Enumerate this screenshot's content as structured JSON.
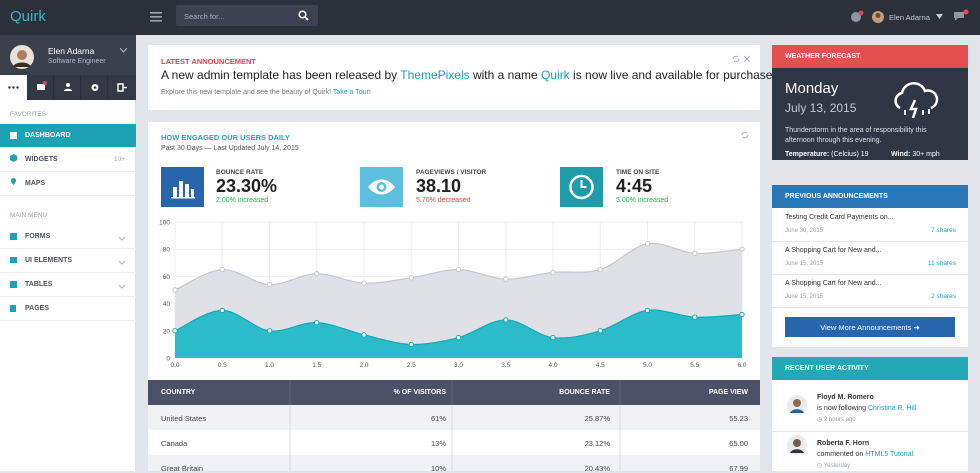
{
  "topbar": {
    "logo": "Quirk",
    "search_placeholder": "Search for...",
    "user": "Elen Adarna"
  },
  "profile": {
    "name": "Elen Adarna",
    "role": "Software Engineer"
  },
  "sidebar": {
    "favorites_label": "FAVORITES",
    "favorites": [
      {
        "label": "DASHBOARD"
      },
      {
        "label": "WIDGETS",
        "badge": "10+"
      },
      {
        "label": "MAPS"
      }
    ],
    "main_menu_label": "MAIN MENU",
    "main_menu": [
      "FORMS",
      "UI ELEMENTS",
      "TABLES",
      "PAGES"
    ]
  },
  "announcement": {
    "title": "LATEST ANNOUNCEMENT",
    "text_1": "A new admin template has been released by ",
    "link_1": "ThemePixels",
    "text_2": " with a name ",
    "link_2": "Quirk",
    "text_3": " is now live and available for purchase!",
    "sub": "Explore this new template and see the beauty of Quirk! ",
    "sub_link": "Take a Tour!"
  },
  "engagement": {
    "title": "HOW ENGAGED OUR USERS DAILY",
    "subtitle": "Past 30 Days — Last Updated July 14, 2015",
    "stats": [
      {
        "label": "BOUNCE RATE",
        "value": "23.30%",
        "change": "2.00% increased"
      },
      {
        "label": "PAGEVIEWS / VISITOR",
        "value": "38.10",
        "change": "5.70% decreased"
      },
      {
        "label": "TIME ON SITE",
        "value": "4:45",
        "change": "5.00% increased"
      }
    ]
  },
  "chart_data": {
    "type": "area",
    "x": [
      0,
      0.5,
      1,
      1.5,
      2,
      2.5,
      3,
      3.5,
      4,
      4.5,
      5,
      5.5,
      6
    ],
    "series": [
      {
        "color": "#c3c7cf",
        "fill": "#dfe1e7",
        "values": [
          50,
          65,
          54,
          62,
          55,
          59,
          65,
          58,
          63,
          65,
          84,
          77,
          80
        ]
      },
      {
        "color": "#1aa7b5",
        "fill": "#2bbcca",
        "values": [
          20,
          35,
          20,
          26,
          17,
          10,
          15,
          28,
          15,
          20,
          35,
          30,
          32
        ]
      }
    ],
    "xlim": [
      0,
      6
    ],
    "xticks": [
      {
        "value": 0,
        "label": "0.0"
      },
      0.5,
      {
        "value": 1,
        "label": "1.0"
      },
      1.5,
      {
        "value": 2,
        "label": "2.0"
      },
      2.5,
      {
        "value": 3,
        "label": "3.0"
      },
      3.5,
      {
        "value": 4,
        "label": "4.0"
      },
      4.5,
      {
        "value": 5,
        "label": "5.0"
      },
      5.5,
      {
        "value": 6,
        "label": "6.0"
      }
    ],
    "ylim": [
      0,
      100
    ],
    "yticks": [
      0,
      20,
      40,
      60,
      80,
      100
    ],
    "grid": true
  },
  "table": {
    "header": [
      "COUNTRY",
      "% OF VISITORS",
      "BOUNCE RATE",
      "PAGE VIEW"
    ],
    "rows": [
      [
        "United States",
        "61%",
        "25.87%",
        "55.23"
      ],
      [
        "Canada",
        "13%",
        "23.12%",
        "65.00"
      ],
      [
        "Great Britain",
        "10%",
        "20.43%",
        "67.99"
      ]
    ]
  },
  "weather": {
    "title": "WEATHER FORECAST",
    "day": "Monday",
    "date": "July 13, 2015",
    "description": "Thunderstorm in the area of responsibility this afternoon through this evening.",
    "temperature_label": "Temperature:",
    "temperature": "(Celcius) 19",
    "wind_label": "Wind:",
    "wind": "30+ mph"
  },
  "previous": {
    "title": "PREVIOUS ANNOUNCEMENTS",
    "items": [
      {
        "title": "Testing Credit Card Payments on...",
        "date": "June 30, 2015",
        "shares": "7 shares"
      },
      {
        "title": "A Shopping Cart for New and...",
        "date": "June 15, 2015",
        "shares": "11 shares"
      },
      {
        "title": "A Shopping Cart for New and...",
        "date": "June 15, 2015",
        "shares": "2 shares"
      }
    ],
    "button": "View More Announcements"
  },
  "activity": {
    "title": "RECENT USER ACTIVITY",
    "items": [
      {
        "name": "Floyd M. Romero",
        "action": "is now following",
        "target": "Christina R. Hill",
        "time": "2 hours ago"
      },
      {
        "name": "Roberta F. Horn",
        "action": "commented on",
        "target": "HTML5 Tutorial",
        "time": "Yesterday"
      }
    ]
  }
}
